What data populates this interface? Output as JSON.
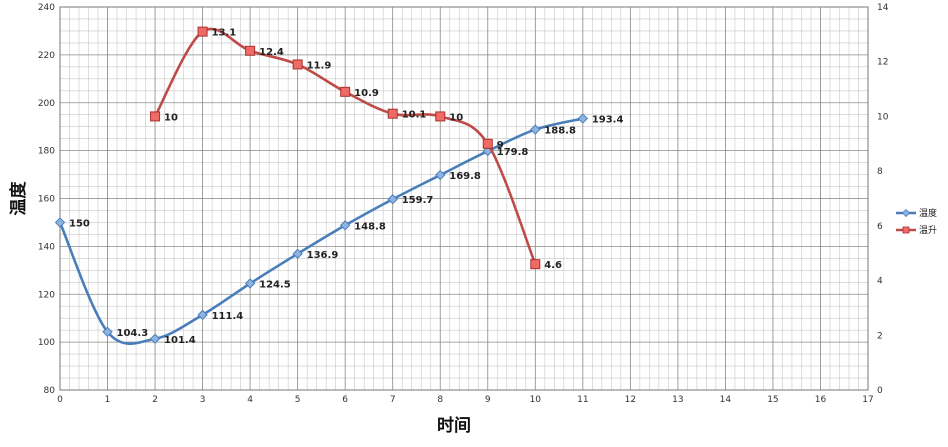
{
  "chart_data": {
    "type": "line",
    "xlabel": "时间",
    "ylabel": "温度",
    "xlim": [
      0,
      17
    ],
    "x_ticks": [
      0,
      1,
      2,
      3,
      4,
      5,
      6,
      7,
      8,
      9,
      10,
      11,
      12,
      13,
      14,
      15,
      16,
      17
    ],
    "ylim": [
      80,
      240
    ],
    "y_ticks": [
      80,
      100,
      120,
      140,
      160,
      180,
      200,
      220,
      240
    ],
    "y2lim": [
      0,
      14
    ],
    "y2_ticks": [
      0,
      2,
      4,
      6,
      8,
      10,
      12,
      14
    ],
    "grid": true,
    "legend_position": "right",
    "series": [
      {
        "name": "温度",
        "axis": "left",
        "color": "#4a7ebb",
        "marker": "diamond",
        "x": [
          0,
          1,
          2,
          3,
          4,
          5,
          6,
          7,
          8,
          9,
          10,
          11
        ],
        "values": [
          150,
          104.3,
          101.4,
          111.4,
          124.5,
          136.9,
          148.8,
          159.7,
          169.8,
          179.8,
          188.8,
          193.4
        ],
        "labels": [
          "150",
          "104.3",
          "101.4",
          "111.4",
          "124.5",
          "136.9",
          "148.8",
          "159.7",
          "169.8",
          "179.8",
          "188.8",
          "193.4"
        ]
      },
      {
        "name": "温升",
        "axis": "right",
        "color": "#be4b48",
        "marker": "square",
        "x": [
          2,
          3,
          4,
          5,
          6,
          7,
          8,
          9,
          10
        ],
        "values": [
          10,
          13.1,
          12.4,
          11.9,
          10.9,
          10.1,
          10,
          9,
          4.6
        ],
        "labels": [
          "10",
          "13.1",
          "12.4",
          "11.9",
          "10.9",
          "10.1",
          "10",
          "9",
          "4.6"
        ]
      }
    ]
  }
}
